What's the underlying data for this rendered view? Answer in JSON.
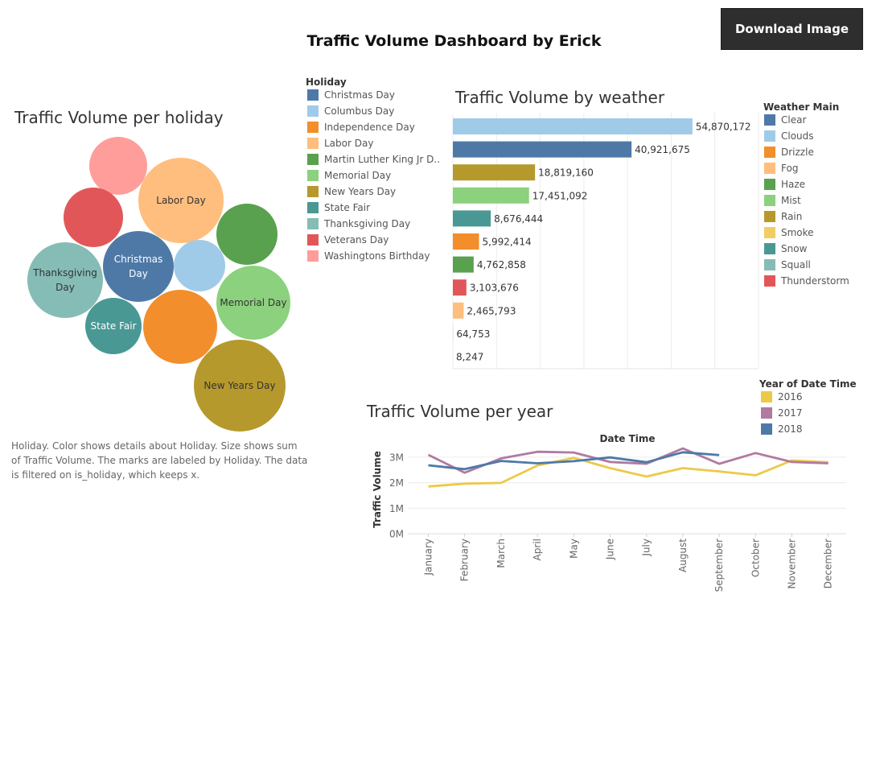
{
  "dashboard": {
    "title": "Traffic Volume Dashboard by Erick",
    "download_label": "Download Image"
  },
  "holiday_sheet": {
    "title": "Traffic Volume per holiday",
    "caption": "Holiday.  Color shows details about Holiday.  Size shows sum of Traffic Volume.  The marks are labeled by Holiday. The data is filtered on is_holiday, which keeps x.",
    "legend_title": "Holiday",
    "legend": [
      {
        "label": "Christmas Day",
        "color": "#4e79a7"
      },
      {
        "label": "Columbus Day",
        "color": "#a0cbe8"
      },
      {
        "label": "Independence Day",
        "color": "#f28e2b"
      },
      {
        "label": "Labor Day",
        "color": "#ffbe7d"
      },
      {
        "label": "Martin Luther King Jr D..",
        "color": "#59a14f"
      },
      {
        "label": "Memorial Day",
        "color": "#8cd17d"
      },
      {
        "label": "New Years Day",
        "color": "#b6992d"
      },
      {
        "label": "State Fair",
        "color": "#499894"
      },
      {
        "label": "Thanksgiving Day",
        "color": "#86bcb6"
      },
      {
        "label": "Veterans Day",
        "color": "#e15759"
      },
      {
        "label": "Washingtons Birthday",
        "color": "#ff9d9a"
      }
    ],
    "bubbles": [
      {
        "label": "",
        "color": "#ff9d9a",
        "text_color": "#333"
      },
      {
        "label": "Labor Day",
        "color": "#ffbe7d",
        "text_color": "#333"
      },
      {
        "label": "",
        "color": "#e15759",
        "text_color": "#fff"
      },
      {
        "label": "",
        "color": "#59a14f",
        "text_color": "#fff"
      },
      {
        "label": "Christmas\nDay",
        "color": "#4e79a7",
        "text_color": "#fff"
      },
      {
        "label": "",
        "color": "#a0cbe8",
        "text_color": "#333"
      },
      {
        "label": "Thanksgiving\nDay",
        "color": "#86bcb6",
        "text_color": "#333"
      },
      {
        "label": "Memorial Day",
        "color": "#8cd17d",
        "text_color": "#333"
      },
      {
        "label": "State Fair",
        "color": "#499894",
        "text_color": "#fff"
      },
      {
        "label": "",
        "color": "#f28e2b",
        "text_color": "#fff"
      },
      {
        "label": "New Years Day",
        "color": "#b6992d",
        "text_color": "#333"
      }
    ]
  },
  "weather_sheet": {
    "title": "Traffic Volume by weather",
    "legend_title": "Weather Main",
    "legend": [
      {
        "label": "Clear",
        "color": "#4e79a7"
      },
      {
        "label": "Clouds",
        "color": "#a0cbe8"
      },
      {
        "label": "Drizzle",
        "color": "#f28e2b"
      },
      {
        "label": "Fog",
        "color": "#ffbe7d"
      },
      {
        "label": "Haze",
        "color": "#59a14f"
      },
      {
        "label": "Mist",
        "color": "#8cd17d"
      },
      {
        "label": "Rain",
        "color": "#b6992d"
      },
      {
        "label": "Smoke",
        "color": "#f1ce63"
      },
      {
        "label": "Snow",
        "color": "#499894"
      },
      {
        "label": "Squall",
        "color": "#86bcb6"
      },
      {
        "label": "Thunderstorm",
        "color": "#e15759"
      }
    ]
  },
  "year_sheet": {
    "title": "Traffic Volume per year",
    "legend_title": "Year of Date Time",
    "legend": [
      {
        "label": "2016",
        "color": "#edc948"
      },
      {
        "label": "2017",
        "color": "#b07aa1"
      },
      {
        "label": "2018",
        "color": "#4e79a7"
      }
    ]
  },
  "chart_data": [
    {
      "type": "bar",
      "orientation": "horizontal",
      "title": "Traffic Volume by weather",
      "categories": [
        "Clouds",
        "Clear",
        "Rain",
        "Mist",
        "Snow",
        "Drizzle",
        "Haze",
        "Thunderstorm",
        "Fog",
        "Smoke",
        "Squall"
      ],
      "colors": [
        "#a0cbe8",
        "#4e79a7",
        "#b6992d",
        "#8cd17d",
        "#499894",
        "#f28e2b",
        "#59a14f",
        "#e15759",
        "#ffbe7d",
        "#f1ce63",
        "#86bcb6"
      ],
      "values": [
        54870172,
        40921675,
        18819160,
        17451092,
        8676444,
        5992414,
        4762858,
        3103676,
        2465793,
        64753,
        8247
      ],
      "value_labels": [
        "54,870,172",
        "40,921,675",
        "18,819,160",
        "17,451,092",
        "8,676,444",
        "5,992,414",
        "4,762,858",
        "3,103,676",
        "2,465,793",
        "64,753",
        "8,247"
      ],
      "xlim": [
        0,
        70000000
      ],
      "grid": true
    },
    {
      "type": "line",
      "title": "Traffic Volume per year",
      "xlabel": "Date Time",
      "ylabel": "Traffic Volume",
      "categories": [
        "January",
        "February",
        "March",
        "April",
        "May",
        "June",
        "July",
        "August",
        "September",
        "October",
        "November",
        "December"
      ],
      "y_ticks": [
        0,
        1000000,
        2000000,
        3000000
      ],
      "y_tick_labels": [
        "0M",
        "1M",
        "2M",
        "3M"
      ],
      "ylim": [
        0,
        3500000
      ],
      "series": [
        {
          "name": "2016",
          "color": "#edc948",
          "values": [
            1850000,
            1960000,
            1990000,
            2670000,
            2970000,
            2570000,
            2240000,
            2570000,
            2440000,
            2290000,
            2870000,
            2800000
          ]
        },
        {
          "name": "2017",
          "color": "#b07aa1",
          "values": [
            3090000,
            2390000,
            2950000,
            3210000,
            3180000,
            2810000,
            2740000,
            3340000,
            2740000,
            3160000,
            2810000,
            2760000
          ]
        },
        {
          "name": "2018",
          "color": "#4e79a7",
          "values": [
            2680000,
            2530000,
            2850000,
            2760000,
            2840000,
            2990000,
            2800000,
            3190000,
            3080000,
            null,
            null,
            null
          ]
        }
      ],
      "grid": true,
      "legend_placement": "top-right"
    }
  ]
}
